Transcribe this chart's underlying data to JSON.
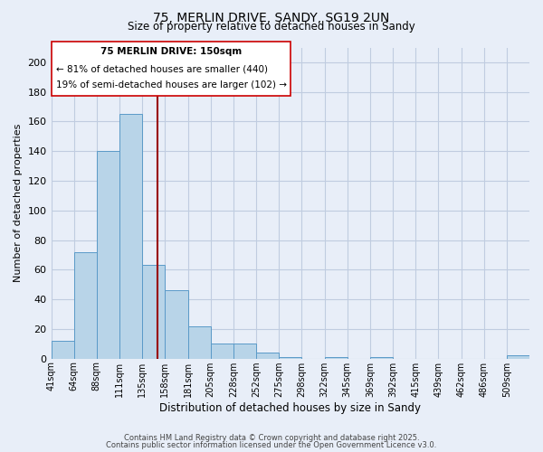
{
  "title": "75, MERLIN DRIVE, SANDY, SG19 2UN",
  "subtitle": "Size of property relative to detached houses in Sandy",
  "xlabel": "Distribution of detached houses by size in Sandy",
  "ylabel": "Number of detached properties",
  "bin_labels": [
    "41sqm",
    "64sqm",
    "88sqm",
    "111sqm",
    "135sqm",
    "158sqm",
    "181sqm",
    "205sqm",
    "228sqm",
    "252sqm",
    "275sqm",
    "298sqm",
    "322sqm",
    "345sqm",
    "369sqm",
    "392sqm",
    "415sqm",
    "439sqm",
    "462sqm",
    "486sqm",
    "509sqm"
  ],
  "bar_values": [
    12,
    72,
    140,
    165,
    63,
    46,
    22,
    10,
    10,
    4,
    1,
    0,
    1,
    0,
    1,
    0,
    0,
    0,
    0,
    0,
    2
  ],
  "bar_color": "#b8d4e8",
  "bar_edge_color": "#5a9ac8",
  "ylim": [
    0,
    210
  ],
  "yticks": [
    0,
    20,
    40,
    60,
    80,
    100,
    120,
    140,
    160,
    180,
    200
  ],
  "annotation_title": "75 MERLIN DRIVE: 150sqm",
  "annotation_line1": "← 81% of detached houses are smaller (440)",
  "annotation_line2": "19% of semi-detached houses are larger (102) →",
  "footer_line1": "Contains HM Land Registry data © Crown copyright and database right 2025.",
  "footer_line2": "Contains public sector information licensed under the Open Government Licence v3.0.",
  "background_color": "#e8eef8",
  "plot_bg_color": "#e8eef8",
  "grid_color": "#c0cce0"
}
